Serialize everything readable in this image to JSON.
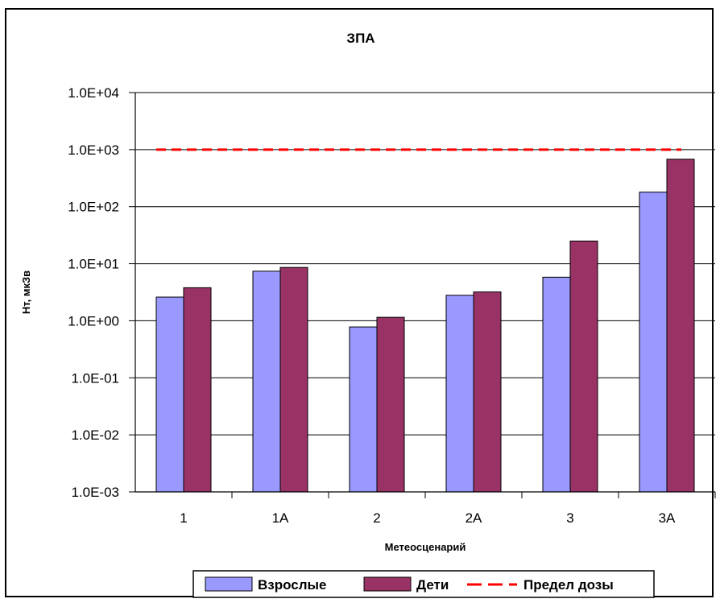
{
  "chart_data": {
    "type": "bar",
    "title": "ЗПА",
    "xlabel": "Метеосценарий",
    "ylabel": "Нт, мкЗв",
    "yscale": "log",
    "ylim": [
      0.001,
      10000
    ],
    "yticks": [
      "1.0E-03",
      "1.0E-02",
      "1.0E-01",
      "1.0E+00",
      "1.0E+01",
      "1.0E+02",
      "1.0E+03",
      "1.0E+04"
    ],
    "categories": [
      "1",
      "1А",
      "2",
      "2А",
      "3",
      "3А"
    ],
    "series": [
      {
        "name": "Взрослые",
        "color": "#9999ff",
        "values": [
          2.6,
          7.4,
          0.78,
          2.8,
          5.8,
          180
        ]
      },
      {
        "name": "Дети",
        "color": "#993366",
        "values": [
          3.8,
          8.6,
          1.15,
          3.2,
          25,
          680
        ]
      }
    ],
    "reference_line": {
      "name": "Предел дозы",
      "value": 1000,
      "color": "#ff0000",
      "style": "dashed"
    },
    "grid": "horizontal",
    "legend": "bottom"
  }
}
